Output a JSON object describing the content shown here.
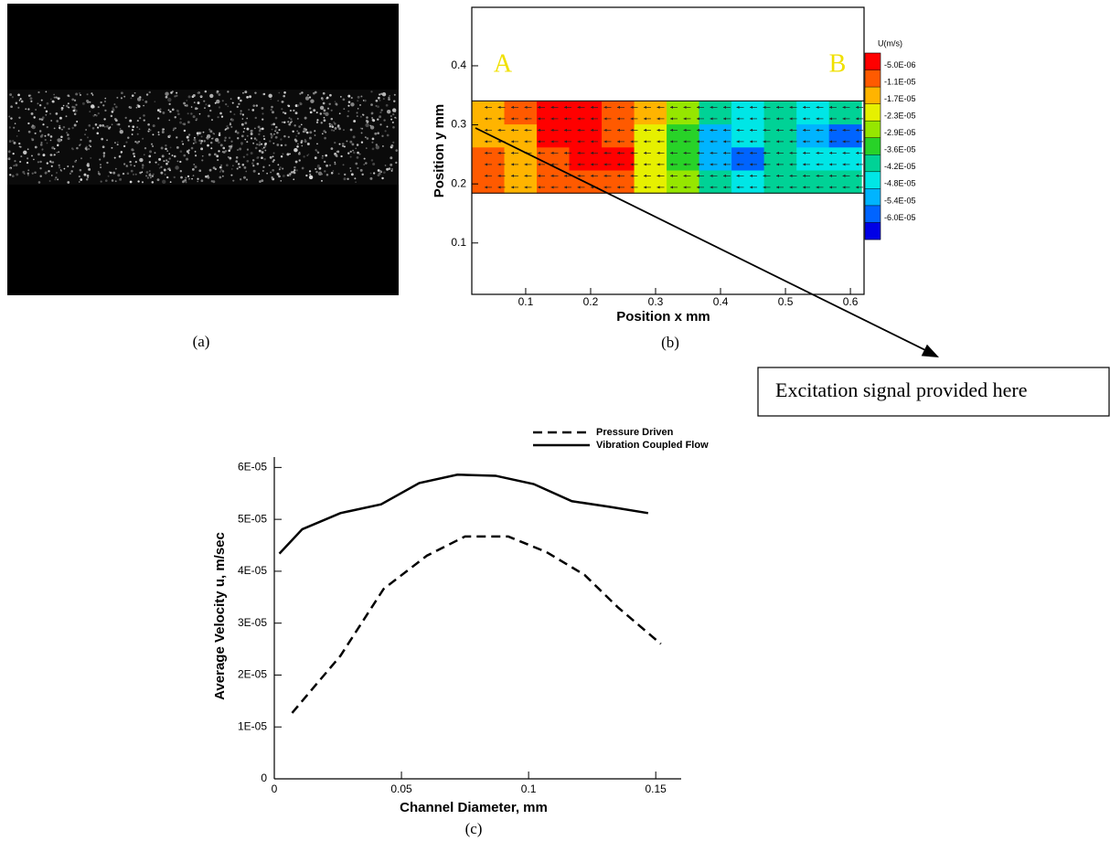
{
  "image_panel": {
    "label": "(a)"
  },
  "annotation": {
    "text": "Excitation signal provided here"
  },
  "chart_data": [
    {
      "type": "contour",
      "label": "(b)",
      "xlabel": "Position x mm",
      "ylabel": "Position y mm",
      "xlim": [
        0.017,
        0.621
      ],
      "ylim": [
        0.013,
        0.499
      ],
      "xticks": [
        0.1,
        0.2,
        0.3,
        0.4,
        0.5,
        0.6
      ],
      "yticks": [
        0.1,
        0.2,
        0.3,
        0.4
      ],
      "annotations": [
        "A",
        "B"
      ],
      "colorbar_title": "U(m/s)",
      "levels": [
        {
          "value": -5e-06,
          "label": "-5.0E-06"
        },
        {
          "value": -1.1e-05,
          "label": "-1.1E-05"
        },
        {
          "value": -1.7e-05,
          "label": "-1.7E-05"
        },
        {
          "value": -2.3e-05,
          "label": "-2.3E-05"
        },
        {
          "value": -2.9e-05,
          "label": "-2.9E-05"
        },
        {
          "value": -3.6e-05,
          "label": "-3.6E-05"
        },
        {
          "value": -4.2e-05,
          "label": "-4.2E-05"
        },
        {
          "value": -4.8e-05,
          "label": "-4.8E-05"
        },
        {
          "value": -5.4e-05,
          "label": "-5.4E-05"
        },
        {
          "value": -6e-05,
          "label": "-6.0E-05"
        }
      ],
      "colors": [
        "#ff0000",
        "#ff5a00",
        "#ffb400",
        "#e6f000",
        "#96e600",
        "#28d228",
        "#00d296",
        "#00e6e6",
        "#00b4ff",
        "#0064ff",
        "#0000e6"
      ],
      "x": [
        0.042,
        0.092,
        0.142,
        0.192,
        0.242,
        0.292,
        0.342,
        0.392,
        0.442,
        0.492,
        0.542,
        0.592
      ],
      "y": [
        0.204,
        0.243,
        0.282,
        0.321
      ],
      "z": [
        [
          -8e-06,
          -1.4e-05,
          -8e-06,
          -8e-06,
          -8e-06,
          -2e-05,
          -2.6e-05,
          -3.9e-05,
          -4.5e-05,
          -3.9e-05,
          -3.9e-05,
          -3.9e-05
        ],
        [
          -8e-06,
          -1.4e-05,
          -8e-06,
          -3e-06,
          -3e-06,
          -2e-05,
          -3.3e-05,
          -5.1e-05,
          -5.7e-05,
          -3.9e-05,
          -4.5e-05,
          -4.5e-05
        ],
        [
          -1.4e-05,
          -1.4e-05,
          -3e-06,
          -3e-06,
          -8e-06,
          -2e-05,
          -3.3e-05,
          -5.1e-05,
          -4.5e-05,
          -3.9e-05,
          -5.1e-05,
          -5.7e-05
        ],
        [
          -1.4e-05,
          -8e-06,
          -3e-06,
          -3e-06,
          -8e-06,
          -1.4e-05,
          -2.6e-05,
          -3.9e-05,
          -4.5e-05,
          -3.9e-05,
          -4.5e-05,
          -3.9e-05
        ]
      ]
    },
    {
      "type": "line",
      "label": "(c)",
      "xlabel": "Channel Diameter, mm",
      "ylabel": "Average Velocity u, m/sec",
      "xlim": [
        0,
        0.16
      ],
      "ylim": [
        0,
        6.2e-05
      ],
      "xticks": [
        0,
        0.05,
        0.1,
        0.15
      ],
      "yticks": [
        0,
        {
          "value": 1e-05,
          "label": "1E-05"
        },
        {
          "value": 2e-05,
          "label": "2E-05"
        },
        {
          "value": 3e-05,
          "label": "3E-05"
        },
        {
          "value": 4e-05,
          "label": "4E-05"
        },
        {
          "value": 5e-05,
          "label": "5E-05"
        },
        {
          "value": 6e-05,
          "label": "6E-05"
        }
      ],
      "series": [
        {
          "name": "Pressure Driven",
          "color": "#000000",
          "style": "dashed",
          "x": [
            0.007,
            0.026,
            0.043,
            0.06,
            0.075,
            0.092,
            0.107,
            0.122,
            0.135,
            0.152
          ],
          "values": [
            1.27e-05,
            2.37e-05,
            3.66e-05,
            4.3e-05,
            4.67e-05,
            4.67e-05,
            4.37e-05,
            3.93e-05,
            3.31e-05,
            2.6e-05
          ]
        },
        {
          "name": "Vibration Coupled Flow",
          "color": "#000000",
          "style": "solid",
          "x": [
            0.002,
            0.011,
            0.026,
            0.042,
            0.057,
            0.072,
            0.087,
            0.102,
            0.117,
            0.132,
            0.147
          ],
          "values": [
            4.34e-05,
            4.81e-05,
            5.12e-05,
            5.29e-05,
            5.7e-05,
            5.86e-05,
            5.84e-05,
            5.68e-05,
            5.35e-05,
            5.24e-05,
            5.12e-05
          ]
        }
      ]
    }
  ]
}
